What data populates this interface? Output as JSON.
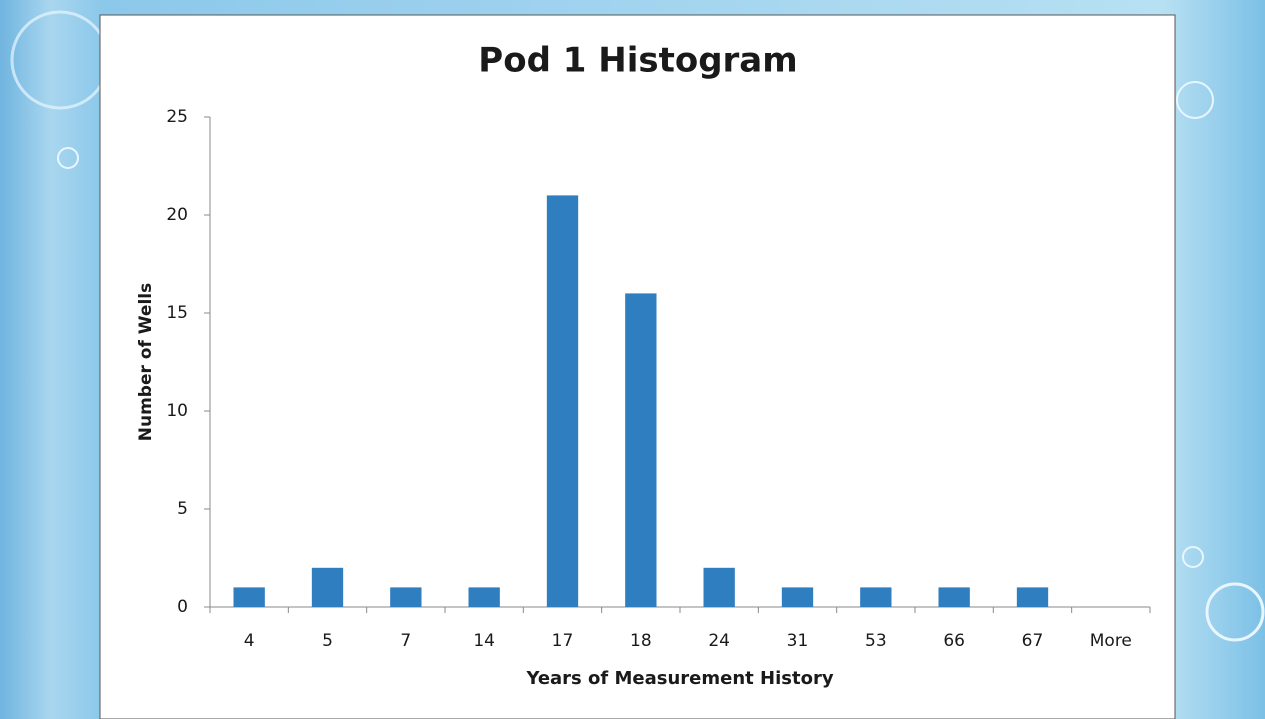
{
  "chart_data": {
    "type": "bar",
    "title": "Pod 1 Histogram",
    "x_label": "Years of Measurement History",
    "y_label": "Number of Wells",
    "categories": [
      "4",
      "5",
      "7",
      "14",
      "17",
      "18",
      "24",
      "31",
      "53",
      "66",
      "67",
      "More"
    ],
    "values": [
      1,
      2,
      1,
      1,
      21,
      16,
      2,
      1,
      1,
      1,
      1,
      0
    ],
    "color": "#2f7ebf",
    "ylim": [
      0,
      25
    ],
    "yticks": [
      0,
      5,
      10,
      15,
      20,
      25
    ],
    "grid": false
  }
}
